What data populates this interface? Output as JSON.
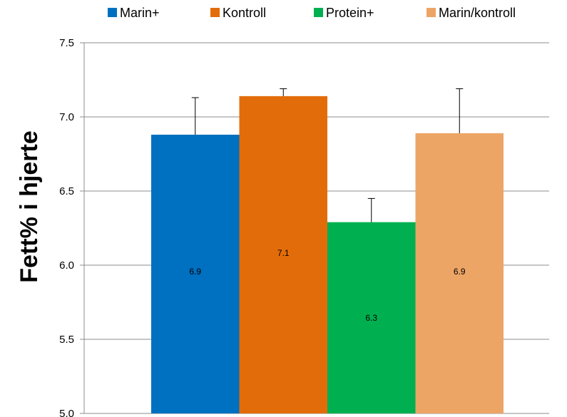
{
  "chart_data": {
    "type": "bar",
    "title": "",
    "xlabel": "",
    "ylabel": "Fett% i hjerte",
    "ylim": [
      5.0,
      7.5
    ],
    "yticks": [
      "5.0",
      "5.5",
      "6.0",
      "6.5",
      "7.0",
      "7.5"
    ],
    "grid": true,
    "legend_position": "top",
    "series": [
      {
        "name": "Marin+",
        "value": 6.88,
        "label": "6.9",
        "error": 0.25,
        "color": "#0070C0"
      },
      {
        "name": "Kontroll",
        "value": 7.14,
        "label": "7.1",
        "error": 0.05,
        "color": "#E36C0A"
      },
      {
        "name": "Protein+",
        "value": 6.29,
        "label": "6.3",
        "error": 0.16,
        "color": "#00B050"
      },
      {
        "name": "Marin/kontroll",
        "value": 6.89,
        "label": "6.9",
        "error": 0.3,
        "color": "#EDA566"
      }
    ]
  }
}
